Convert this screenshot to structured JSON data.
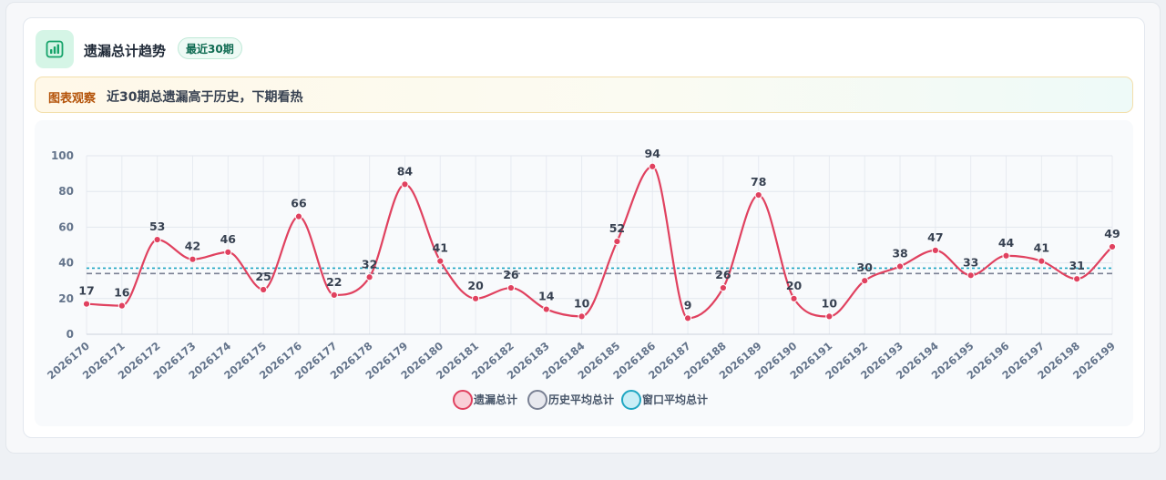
{
  "header": {
    "title": "遗漏总计趋势",
    "badge": "最近30期",
    "icon": "bar-chart-icon"
  },
  "notice": {
    "label": "图表观察",
    "text": "近30期总遗漏高于历史，下期看热"
  },
  "colors": {
    "series": "#e0415f",
    "series_fill": "#f9cfd7",
    "history_avg": "#7a8194",
    "history_fill": "#e8e9ef",
    "window_avg": "#1fa6c2",
    "window_fill": "#c9eef6",
    "accent": "#16a36a"
  },
  "chart_data": {
    "type": "line",
    "categories": [
      "2026170",
      "2026171",
      "2026172",
      "2026173",
      "2026174",
      "2026175",
      "2026176",
      "2026177",
      "2026178",
      "2026179",
      "2026180",
      "2026181",
      "2026182",
      "2026183",
      "2026184",
      "2026185",
      "2026186",
      "2026187",
      "2026188",
      "2026189",
      "2026190",
      "2026191",
      "2026192",
      "2026193",
      "2026194",
      "2026195",
      "2026196",
      "2026197",
      "2026198",
      "2026199"
    ],
    "series": [
      {
        "name": "遗漏总计",
        "values": [
          17,
          16,
          53,
          42,
          46,
          25,
          66,
          22,
          32,
          84,
          41,
          20,
          26,
          14,
          10,
          52,
          94,
          9,
          26,
          78,
          20,
          10,
          30,
          38,
          47,
          33,
          44,
          41,
          31,
          49
        ]
      },
      {
        "name": "历史平均总计",
        "values": [
          34,
          34,
          34,
          34,
          34,
          34,
          34,
          34,
          34,
          34,
          34,
          34,
          34,
          34,
          34,
          34,
          34,
          34,
          34,
          34,
          34,
          34,
          34,
          34,
          34,
          34,
          34,
          34,
          34,
          34
        ]
      },
      {
        "name": "窗口平均总计",
        "values": [
          37,
          37,
          37,
          37,
          37,
          37,
          37,
          37,
          37,
          37,
          37,
          37,
          37,
          37,
          37,
          37,
          37,
          37,
          37,
          37,
          37,
          37,
          37,
          37,
          37,
          37,
          37,
          37,
          37,
          37
        ]
      }
    ],
    "ylim": [
      0,
      100
    ],
    "yticks": [
      0,
      20,
      40,
      60,
      80,
      100
    ],
    "grid": true,
    "legend": "bottom-center"
  }
}
